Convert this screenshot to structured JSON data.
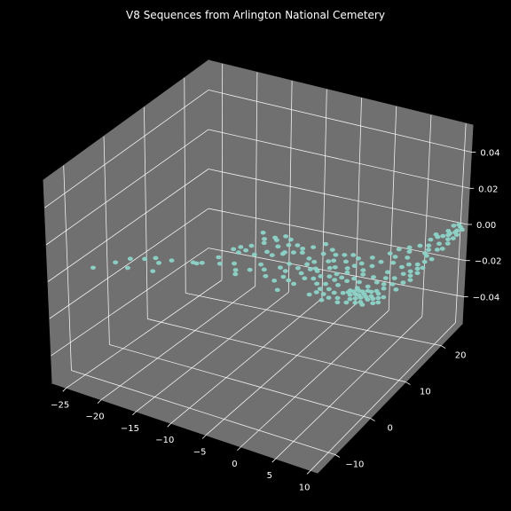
{
  "chart_data": {
    "type": "scatter",
    "projection": "3d",
    "title": "V8 Sequences from Arlington National Cemetery",
    "theme": "dark_background",
    "background_color": "#000000",
    "pane_color": "#707070",
    "grid_color": "#ffffff",
    "grid": true,
    "marker_color": "#8dd3c7",
    "xlim": [
      -27,
      11
    ],
    "ylim": [
      -15,
      26
    ],
    "zlim": [
      -0.055,
      0.055
    ],
    "x_ticks": [
      -25,
      -20,
      -15,
      -10,
      -5,
      0,
      5,
      10
    ],
    "y_ticks": [
      -10,
      0,
      10,
      20
    ],
    "z_ticks": [
      -0.04,
      -0.02,
      0.0,
      0.02,
      0.04
    ],
    "x_tick_labels": [
      "−25",
      "−20",
      "−15",
      "−10",
      "−5",
      "0",
      "5",
      "10"
    ],
    "y_tick_labels": [
      "−10",
      "0",
      "10",
      "20"
    ],
    "z_tick_labels": [
      "−0.04",
      "−0.02",
      "0.00",
      "0.02",
      "0.04"
    ],
    "series": [
      {
        "points": [
          [
            -24.5,
            -8.0,
            0
          ],
          [
            -23.0,
            -5.0,
            0
          ],
          [
            -21.0,
            -5.5,
            0
          ],
          [
            -22.0,
            -3.0,
            0
          ],
          [
            -20.5,
            -2.0,
            0
          ],
          [
            -19.5,
            -1.0,
            0
          ],
          [
            -18.5,
            -2.0,
            0
          ],
          [
            -18.0,
            -4.5,
            0
          ],
          [
            -17.5,
            -0.5,
            0
          ],
          [
            -15.0,
            0.5,
            0
          ],
          [
            -14.5,
            0.5,
            0
          ],
          [
            -10.5,
            3.0,
            0
          ],
          [
            -9.5,
            1.5,
            0
          ],
          [
            -9.0,
            0.5,
            0
          ],
          [
            -12.5,
            6.5,
            0
          ],
          [
            -11.5,
            6.0,
            0
          ],
          [
            -9.5,
            6.5,
            0
          ],
          [
            -8.5,
            8.0,
            0
          ],
          [
            -7.5,
            7.5,
            0
          ],
          [
            -6.5,
            9.0,
            0
          ],
          [
            -5.5,
            9.5,
            0
          ],
          [
            -4.5,
            10.0,
            0
          ],
          [
            -8.0,
            10.0,
            0
          ],
          [
            -7.0,
            11.0,
            0
          ],
          [
            -6.0,
            11.5,
            0
          ],
          [
            -5.0,
            11.0,
            0
          ],
          [
            -4.0,
            12.0,
            0
          ],
          [
            -6.5,
            8.5,
            0
          ],
          [
            -7.5,
            4.5,
            0
          ],
          [
            -6.5,
            3.5,
            0
          ],
          [
            -5.0,
            5.0,
            0
          ],
          [
            -4.5,
            6.5,
            0
          ],
          [
            -4.0,
            4.5,
            0
          ],
          [
            -3.5,
            3.0,
            0
          ],
          [
            -3.0,
            6.0,
            0
          ],
          [
            -2.5,
            2.5,
            0
          ],
          [
            -2.5,
            7.5,
            0
          ],
          [
            -2.0,
            5.0,
            0
          ],
          [
            -1.5,
            2.0,
            0
          ],
          [
            -1.0,
            4.0,
            0
          ],
          [
            -1.5,
            6.5,
            0
          ],
          [
            -4.0,
            1.5,
            0
          ],
          [
            -5.5,
            2.0,
            0
          ],
          [
            -0.5,
            6.5,
            0
          ],
          [
            -1.0,
            7.0,
            0
          ],
          [
            -2.0,
            8.5,
            0
          ],
          [
            -3.0,
            9.0,
            0
          ],
          [
            -0.5,
            9.5,
            0
          ],
          [
            0.0,
            10.0,
            0
          ],
          [
            0.5,
            8.0,
            0
          ],
          [
            0.0,
            4.5,
            0
          ],
          [
            0.5,
            5.5,
            0
          ],
          [
            1.0,
            3.5,
            0
          ],
          [
            1.5,
            6.0,
            0
          ],
          [
            2.0,
            4.0,
            0
          ],
          [
            2.5,
            5.5,
            0
          ],
          [
            3.0,
            3.0,
            0
          ],
          [
            3.5,
            4.5,
            0
          ],
          [
            4.0,
            2.5,
            0
          ],
          [
            1.5,
            10.5,
            0
          ],
          [
            2.5,
            12.0,
            0
          ],
          [
            3.0,
            10.0,
            0
          ],
          [
            3.5,
            11.0,
            0
          ],
          [
            4.5,
            9.5,
            0
          ],
          [
            4.0,
            13.0,
            0
          ],
          [
            5.0,
            11.0,
            0
          ],
          [
            5.5,
            12.5,
            0
          ],
          [
            4.5,
            7.0,
            0
          ],
          [
            3.0,
            8.0,
            0
          ],
          [
            2.5,
            9.0,
            0
          ],
          [
            5.0,
            3.0,
            0
          ],
          [
            5.5,
            4.0,
            0
          ],
          [
            6.0,
            5.0,
            0
          ],
          [
            6.5,
            2.0,
            0
          ],
          [
            6.5,
            3.5,
            0
          ],
          [
            7.0,
            4.5,
            0
          ],
          [
            7.5,
            3.0,
            0
          ],
          [
            7.0,
            2.5,
            0
          ],
          [
            7.5,
            5.0,
            0
          ],
          [
            8.0,
            3.5,
            0
          ],
          [
            8.0,
            2.0,
            0
          ],
          [
            8.5,
            4.0,
            0
          ],
          [
            8.5,
            3.0,
            0
          ],
          [
            6.0,
            3.0,
            0
          ],
          [
            6.0,
            4.0,
            0
          ],
          [
            6.5,
            4.5,
            0
          ],
          [
            7.0,
            3.5,
            0
          ],
          [
            7.5,
            4.0,
            0
          ],
          [
            5.5,
            3.5,
            0
          ],
          [
            8.0,
            5.0,
            0
          ],
          [
            9.0,
            3.5,
            0
          ],
          [
            9.0,
            5.0,
            0
          ],
          [
            8.5,
            5.5,
            0
          ],
          [
            9.5,
            4.0,
            0
          ],
          [
            9.5,
            2.5,
            0
          ],
          [
            8.5,
            1.5,
            0
          ],
          [
            7.5,
            1.5,
            0
          ],
          [
            6.5,
            1.0,
            0
          ],
          [
            10.0,
            4.5,
            0
          ],
          [
            10.0,
            3.0,
            0
          ],
          [
            9.0,
            6.5,
            0
          ],
          [
            8.5,
            7.5,
            0
          ],
          [
            8.0,
            9.0,
            0
          ],
          [
            7.5,
            10.5,
            0
          ],
          [
            9.0,
            9.5,
            0
          ],
          [
            9.5,
            11.0,
            0
          ],
          [
            10.0,
            12.0,
            0
          ],
          [
            9.0,
            13.5,
            0
          ],
          [
            7.0,
            13.0,
            0
          ],
          [
            8.5,
            12.5,
            0
          ],
          [
            10.5,
            13.0,
            0
          ],
          [
            10.5,
            15.0,
            0
          ],
          [
            10.0,
            16.5,
            0
          ],
          [
            9.5,
            18.0,
            0
          ],
          [
            9.0,
            19.0,
            0
          ],
          [
            10.5,
            18.5,
            0
          ],
          [
            10.0,
            20.0,
            0
          ],
          [
            10.5,
            21.5,
            0
          ],
          [
            9.5,
            17.0,
            0
          ],
          [
            10.0,
            14.0,
            0
          ],
          [
            10.5,
            11.0,
            0
          ],
          [
            10.5,
            9.0,
            0
          ],
          [
            10.5,
            7.0,
            0
          ],
          [
            9.5,
            8.0,
            0
          ],
          [
            11.0,
            16.0,
            0
          ],
          [
            11.0,
            19.0,
            0
          ],
          [
            11.0,
            20.5,
            0
          ],
          [
            8.5,
            20.5,
            0
          ],
          [
            8.0,
            18.5,
            0
          ],
          [
            7.5,
            16.5,
            0
          ],
          [
            8.0,
            15.0,
            0
          ],
          [
            6.5,
            14.5,
            0
          ],
          [
            5.5,
            15.0,
            0
          ],
          [
            6.0,
            16.5,
            0
          ],
          [
            7.0,
            17.5,
            0
          ],
          [
            11.0,
            23.0,
            0
          ],
          [
            10.5,
            23.5,
            0
          ],
          [
            10.0,
            22.5,
            0
          ],
          [
            11.0,
            24.5,
            0
          ],
          [
            10.5,
            24.0,
            0
          ],
          [
            10.0,
            25.5,
            0
          ],
          [
            9.5,
            25.0,
            0
          ],
          [
            11.0,
            22.0,
            0
          ],
          [
            10.0,
            23.0,
            0
          ],
          [
            10.5,
            25.0,
            0
          ],
          [
            -3.0,
            13.5,
            0
          ],
          [
            -8.5,
            13.0,
            0
          ],
          [
            -11.5,
            12.5,
            0
          ],
          [
            -9.5,
            12.0,
            0
          ],
          [
            -10.5,
            11.0,
            0
          ],
          [
            -9.0,
            11.5,
            0
          ],
          [
            -7.5,
            12.5,
            0
          ],
          [
            -10.0,
            10.0,
            0
          ],
          [
            -11.0,
            8.5,
            0
          ],
          [
            -12.0,
            7.5,
            0
          ],
          [
            2.0,
            1.5,
            0
          ],
          [
            1.5,
            0.5,
            0
          ],
          [
            11.0,
            12.0,
            0
          ],
          [
            11.0,
            10.0,
            0
          ],
          [
            11.0,
            13.5,
            0
          ],
          [
            9.5,
            22.0,
            0
          ],
          [
            9.0,
            21.5,
            0
          ],
          [
            9.5,
            23.5,
            0
          ],
          [
            8.5,
            22.0,
            0
          ],
          [
            -14.0,
            1.0,
            0
          ],
          [
            -11.0,
            7.0,
            0
          ],
          [
            -12.0,
            2.0,
            0
          ],
          [
            -13.0,
            3.5,
            0
          ],
          [
            -8.0,
            2.5,
            0
          ],
          [
            -2.0,
            11.0,
            0
          ],
          [
            6.5,
            8.5,
            0
          ],
          [
            5.0,
            8.5,
            0
          ],
          [
            5.5,
            6.5,
            0
          ],
          [
            7.0,
            6.0,
            0
          ],
          [
            7.5,
            7.5,
            0
          ],
          [
            4.0,
            6.0,
            0
          ],
          [
            3.0,
            6.5,
            0
          ],
          [
            2.0,
            7.0,
            0
          ],
          [
            1.0,
            8.5,
            0
          ],
          [
            -0.5,
            11.5,
            0
          ],
          [
            0.5,
            12.0,
            0
          ],
          [
            1.5,
            12.5,
            0
          ],
          [
            -1.5,
            12.5,
            0
          ],
          [
            2.0,
            2.5,
            0
          ],
          [
            3.0,
            1.5,
            0
          ],
          [
            4.0,
            1.0,
            0
          ],
          [
            5.0,
            1.5,
            0
          ],
          [
            5.5,
            0.5,
            0
          ],
          [
            3.5,
            0.0,
            0
          ],
          [
            -2.5,
            -0.5,
            0
          ]
        ]
      }
    ]
  }
}
